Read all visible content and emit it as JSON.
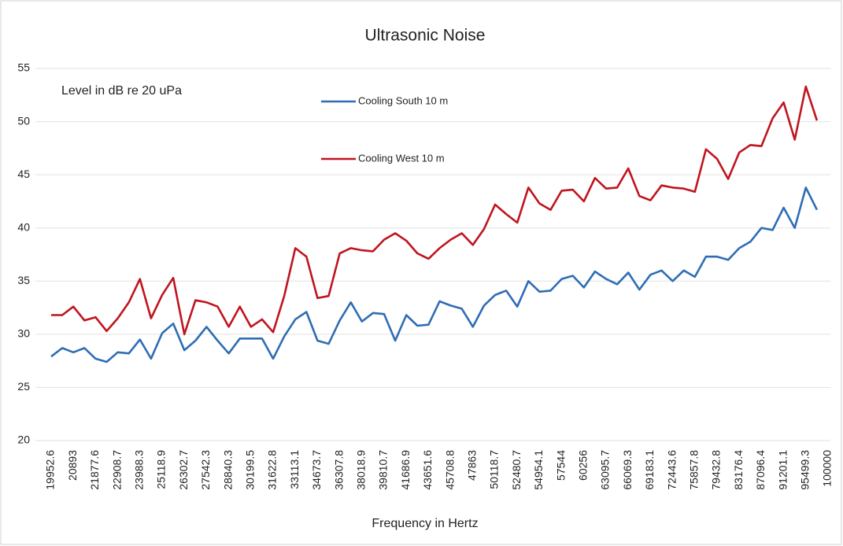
{
  "chart_data": {
    "type": "line",
    "title": "Ultrasonic Noise",
    "annotation": "Level in dB re 20 uPa",
    "x_label": "Frequency in Hertz",
    "categories": [
      "19952.6",
      null,
      "20893",
      null,
      "21877.6",
      null,
      "22908.7",
      null,
      "23988.3",
      null,
      "25118.9",
      null,
      "26302.7",
      null,
      "27542.3",
      null,
      "28840.3",
      null,
      "30199.5",
      null,
      "31622.8",
      null,
      "33113.1",
      null,
      "34673.7",
      null,
      "36307.8",
      null,
      "38018.9",
      null,
      "39810.7",
      null,
      "41686.9",
      null,
      "43651.6",
      null,
      "45708.8",
      null,
      "47863",
      null,
      "50118.7",
      null,
      "52480.7",
      null,
      "54954.1",
      null,
      "57544",
      null,
      "60256",
      null,
      "63095.7",
      null,
      "66069.3",
      null,
      "69183.1",
      null,
      "72443.6",
      null,
      "75857.8",
      null,
      "79432.8",
      null,
      "83176.4",
      null,
      "87096.4",
      null,
      "91201.1",
      null,
      "95499.3",
      null,
      "100000"
    ],
    "series": [
      {
        "name": "Cooling South 10 m",
        "color": "#2e6db4",
        "values": [
          27.9,
          28.7,
          28.3,
          28.7,
          27.7,
          27.4,
          28.3,
          28.2,
          29.5,
          27.7,
          30.1,
          31.0,
          28.5,
          29.4,
          30.7,
          29.4,
          28.2,
          29.6,
          29.6,
          29.6,
          27.7,
          29.8,
          31.4,
          32.1,
          29.4,
          29.1,
          31.3,
          33.0,
          31.2,
          32.0,
          31.9,
          29.4,
          31.8,
          30.8,
          30.9,
          33.1,
          32.7,
          32.4,
          30.7,
          32.7,
          33.7,
          34.1,
          32.6,
          35.0,
          34.0,
          34.1,
          35.2,
          35.5,
          34.4,
          35.9,
          35.2,
          34.7,
          35.8,
          34.2,
          35.6,
          36.0,
          35.0,
          36.0,
          35.4,
          37.3,
          37.3,
          37.0,
          38.1,
          38.7,
          40.0,
          39.8,
          41.9,
          40.0,
          43.8,
          41.7,
          null
        ]
      },
      {
        "name": "Cooling West 10 m",
        "color": "#c0141e",
        "values": [
          31.8,
          31.8,
          32.6,
          31.3,
          31.6,
          30.3,
          31.5,
          33.0,
          35.2,
          31.5,
          33.7,
          35.3,
          30.0,
          33.2,
          33.0,
          32.6,
          30.7,
          32.6,
          30.7,
          31.4,
          30.2,
          33.6,
          38.1,
          37.3,
          33.4,
          33.6,
          37.6,
          38.1,
          37.9,
          37.8,
          38.9,
          39.5,
          38.8,
          37.6,
          37.1,
          38.1,
          38.9,
          39.5,
          38.4,
          39.9,
          42.2,
          41.3,
          40.5,
          43.8,
          42.3,
          41.7,
          43.5,
          43.6,
          42.5,
          44.7,
          43.7,
          43.8,
          45.6,
          43.0,
          42.6,
          44.0,
          43.8,
          43.7,
          43.4,
          47.4,
          46.5,
          44.6,
          47.1,
          47.8,
          47.7,
          50.3,
          51.8,
          48.3,
          53.3,
          50.1,
          null
        ]
      }
    ],
    "ylim": [
      20,
      55
    ],
    "yticks": [
      20,
      25,
      30,
      35,
      40,
      45,
      50,
      55
    ],
    "grid": true
  }
}
